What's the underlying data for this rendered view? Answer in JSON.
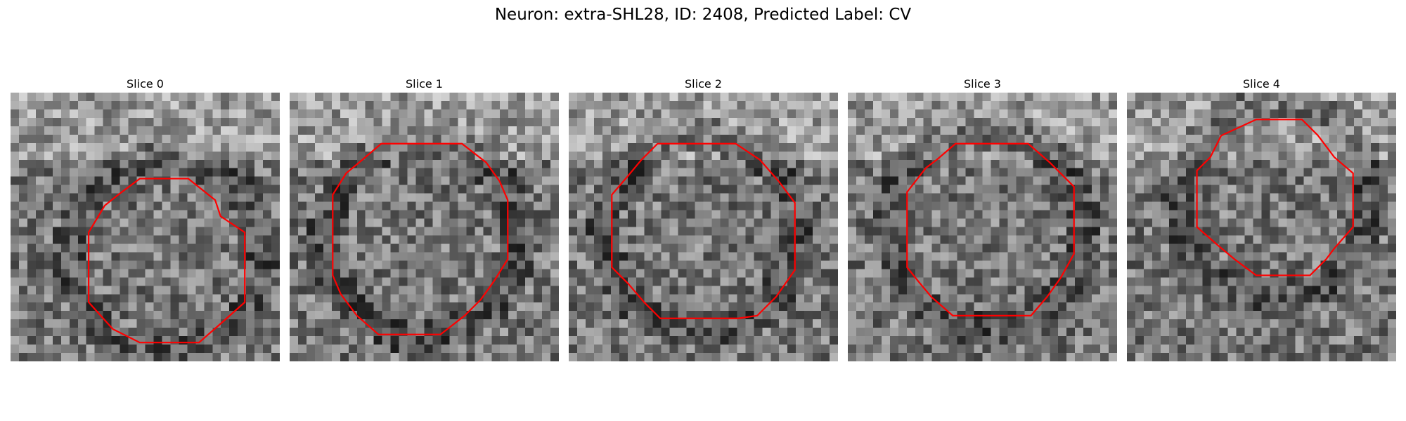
{
  "figure": {
    "title": "Neuron: extra-SHL28, ID: 2408, Predicted Label: CV",
    "contour_color": "#ff0000",
    "colormap": "gray"
  },
  "panels": [
    {
      "title": "Slice 0",
      "contour": [
        [
          0.48,
          0.32
        ],
        [
          0.66,
          0.32
        ],
        [
          0.76,
          0.4
        ],
        [
          0.78,
          0.46
        ],
        [
          0.87,
          0.52
        ],
        [
          0.87,
          0.78
        ],
        [
          0.78,
          0.86
        ],
        [
          0.7,
          0.93
        ],
        [
          0.48,
          0.93
        ],
        [
          0.38,
          0.88
        ],
        [
          0.29,
          0.78
        ],
        [
          0.29,
          0.52
        ],
        [
          0.35,
          0.42
        ],
        [
          0.4,
          0.38
        ]
      ]
    },
    {
      "title": "Slice 1",
      "contour": [
        [
          0.34,
          0.19
        ],
        [
          0.64,
          0.19
        ],
        [
          0.73,
          0.26
        ],
        [
          0.78,
          0.33
        ],
        [
          0.81,
          0.4
        ],
        [
          0.81,
          0.62
        ],
        [
          0.76,
          0.7
        ],
        [
          0.71,
          0.77
        ],
        [
          0.65,
          0.83
        ],
        [
          0.56,
          0.9
        ],
        [
          0.33,
          0.9
        ],
        [
          0.25,
          0.83
        ],
        [
          0.19,
          0.75
        ],
        [
          0.16,
          0.68
        ],
        [
          0.16,
          0.38
        ],
        [
          0.21,
          0.3
        ],
        [
          0.27,
          0.25
        ]
      ]
    },
    {
      "title": "Slice 2",
      "contour": [
        [
          0.33,
          0.19
        ],
        [
          0.62,
          0.19
        ],
        [
          0.71,
          0.25
        ],
        [
          0.78,
          0.33
        ],
        [
          0.84,
          0.41
        ],
        [
          0.84,
          0.66
        ],
        [
          0.77,
          0.76
        ],
        [
          0.7,
          0.83
        ],
        [
          0.63,
          0.84
        ],
        [
          0.34,
          0.84
        ],
        [
          0.28,
          0.78
        ],
        [
          0.22,
          0.71
        ],
        [
          0.16,
          0.65
        ],
        [
          0.16,
          0.38
        ],
        [
          0.22,
          0.31
        ],
        [
          0.27,
          0.25
        ]
      ]
    },
    {
      "title": "Slice 3",
      "contour": [
        [
          0.4,
          0.19
        ],
        [
          0.67,
          0.19
        ],
        [
          0.75,
          0.26
        ],
        [
          0.84,
          0.35
        ],
        [
          0.84,
          0.6
        ],
        [
          0.79,
          0.69
        ],
        [
          0.74,
          0.76
        ],
        [
          0.68,
          0.83
        ],
        [
          0.39,
          0.83
        ],
        [
          0.31,
          0.76
        ],
        [
          0.26,
          0.7
        ],
        [
          0.22,
          0.65
        ],
        [
          0.22,
          0.37
        ],
        [
          0.29,
          0.28
        ],
        [
          0.33,
          0.25
        ]
      ]
    },
    {
      "title": "Slice 4",
      "contour": [
        [
          0.48,
          0.1
        ],
        [
          0.65,
          0.1
        ],
        [
          0.71,
          0.16
        ],
        [
          0.77,
          0.24
        ],
        [
          0.84,
          0.3
        ],
        [
          0.84,
          0.5
        ],
        [
          0.77,
          0.58
        ],
        [
          0.74,
          0.62
        ],
        [
          0.68,
          0.68
        ],
        [
          0.48,
          0.68
        ],
        [
          0.4,
          0.62
        ],
        [
          0.34,
          0.57
        ],
        [
          0.26,
          0.5
        ],
        [
          0.26,
          0.29
        ],
        [
          0.31,
          0.24
        ],
        [
          0.35,
          0.16
        ]
      ]
    }
  ]
}
